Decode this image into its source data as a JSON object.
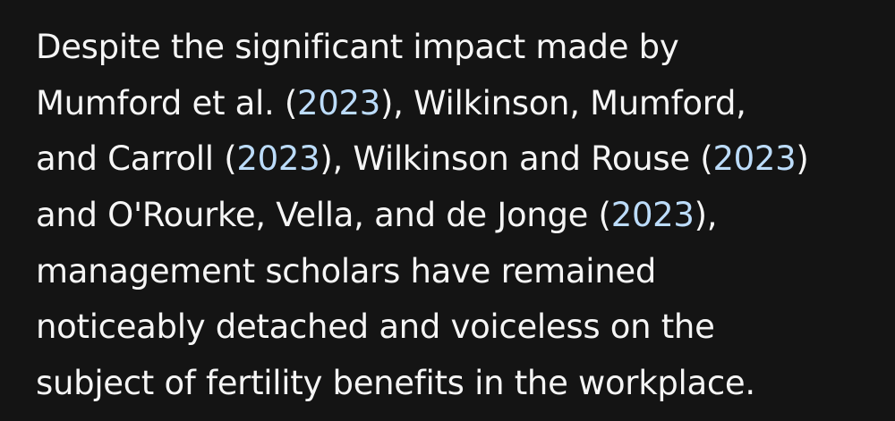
{
  "paragraph": {
    "lines": [
      {
        "t0": "Despite the significant impact made by"
      },
      {
        "t0": "Mumford et al. (",
        "link": "2023",
        "t1": "), Wilkinson, Mumford,"
      },
      {
        "t0": "and Carroll (",
        "link": "2023",
        "t1": "), Wilkinson and Rouse (",
        "link2": "2023",
        "t2": ")"
      },
      {
        "t0": "and O'Rourke, Vella, and de Jonge (",
        "link": "2023",
        "t1": "),"
      },
      {
        "t0": "management scholars have remained"
      },
      {
        "t0": "noticeably detached and voiceless on the"
      },
      {
        "t0": "subject of fertility benefits in the workplace."
      }
    ]
  },
  "colors": {
    "background": "#141414",
    "text": "#f5f5f5",
    "link": "#bcdcfa"
  }
}
